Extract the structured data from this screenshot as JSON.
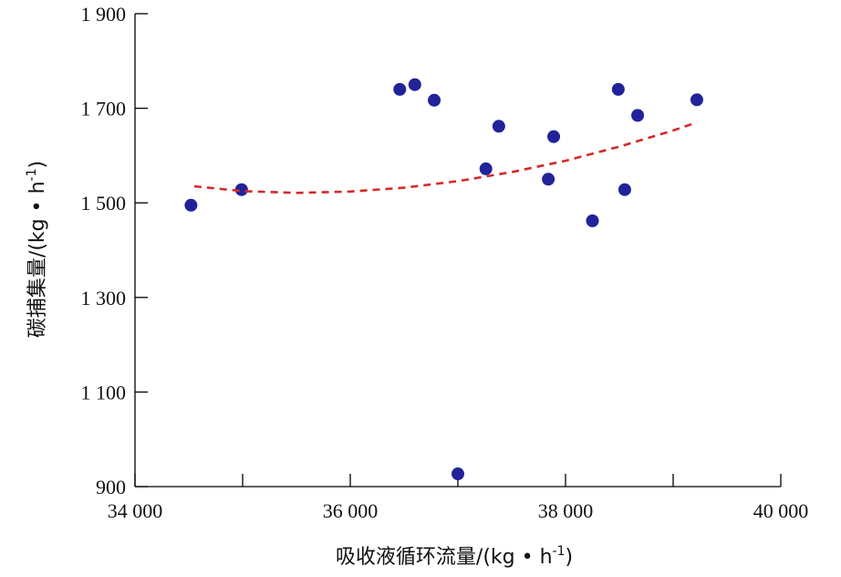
{
  "chart_data": {
    "type": "scatter",
    "xlabel": "吸收液循环流量/(kg • h",
    "xlabel_sup": "-1",
    "xlabel_end": ")",
    "ylabel": "碳捕集量/(kg • h",
    "ylabel_sup": "-1",
    "ylabel_end": ")",
    "xlim": [
      34000,
      40000
    ],
    "ylim": [
      900,
      1900
    ],
    "x_ticks": [
      34000,
      35000,
      36000,
      37000,
      38000,
      39000,
      40000
    ],
    "x_tick_labels": [
      {
        "value": 34000,
        "label": "34 000"
      },
      {
        "value": 36000,
        "label": "36 000"
      },
      {
        "value": 38000,
        "label": "38 000"
      },
      {
        "value": 40000,
        "label": "40 000"
      }
    ],
    "y_ticks": [
      900,
      1100,
      1300,
      1500,
      1700,
      1900
    ],
    "y_tick_labels": [
      {
        "value": 900,
        "label": "900"
      },
      {
        "value": 1100,
        "label": "1 100"
      },
      {
        "value": 1300,
        "label": "1 300"
      },
      {
        "value": 1500,
        "label": "1 500"
      },
      {
        "value": 1700,
        "label": "1 700"
      },
      {
        "value": 1900,
        "label": "1 900"
      }
    ],
    "series": [
      {
        "kind": "points",
        "color": "#22229a",
        "points": [
          {
            "x": 34520,
            "y": 1495
          },
          {
            "x": 34990,
            "y": 1528
          },
          {
            "x": 36460,
            "y": 1740
          },
          {
            "x": 36600,
            "y": 1750
          },
          {
            "x": 36780,
            "y": 1717
          },
          {
            "x": 37000,
            "y": 927
          },
          {
            "x": 37260,
            "y": 1572
          },
          {
            "x": 37380,
            "y": 1662
          },
          {
            "x": 37840,
            "y": 1550
          },
          {
            "x": 37890,
            "y": 1640
          },
          {
            "x": 38250,
            "y": 1462
          },
          {
            "x": 38490,
            "y": 1740
          },
          {
            "x": 38550,
            "y": 1528
          },
          {
            "x": 38670,
            "y": 1685
          },
          {
            "x": 39220,
            "y": 1718
          }
        ]
      },
      {
        "kind": "trend",
        "color": "#d42a2a",
        "points": [
          {
            "x": 34550,
            "y": 1535
          },
          {
            "x": 35000,
            "y": 1525
          },
          {
            "x": 35500,
            "y": 1521
          },
          {
            "x": 36000,
            "y": 1524
          },
          {
            "x": 36500,
            "y": 1532
          },
          {
            "x": 37000,
            "y": 1546
          },
          {
            "x": 37500,
            "y": 1565
          },
          {
            "x": 38000,
            "y": 1589
          },
          {
            "x": 38500,
            "y": 1619
          },
          {
            "x": 39000,
            "y": 1653
          },
          {
            "x": 39220,
            "y": 1670
          }
        ]
      }
    ],
    "grid": false,
    "legend": "none"
  }
}
